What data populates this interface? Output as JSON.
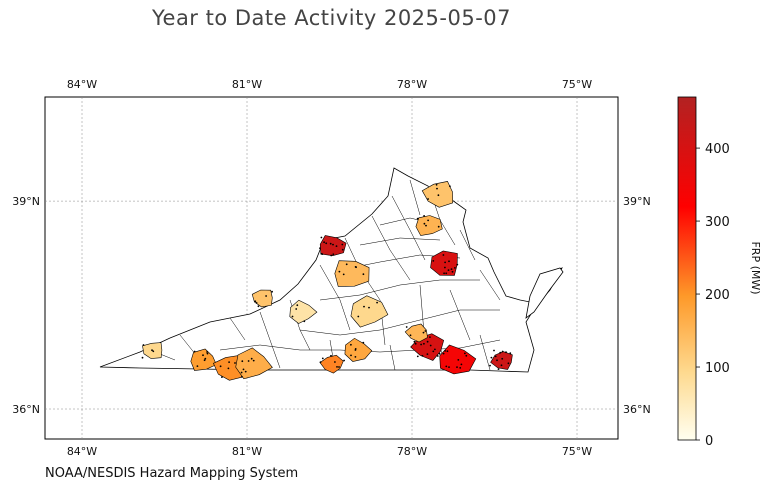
{
  "title": "Year to Date Activity 2025-05-07",
  "source": "NOAA/NESDIS Hazard Mapping System",
  "colors": {
    "state_outline": "#000000",
    "gridline": "#888888",
    "fire_point": "#000000"
  },
  "chart_data": {
    "type": "choropleth",
    "region": "Virginia counties",
    "x_ticks": [
      {
        "value": -84,
        "label": "84°W"
      },
      {
        "value": -81,
        "label": "81°W"
      },
      {
        "value": -78,
        "label": "78°W"
      },
      {
        "value": -75,
        "label": "75°W"
      }
    ],
    "y_ticks": [
      {
        "value": 39,
        "label": "39°N"
      },
      {
        "value": 36,
        "label": "36°N"
      }
    ],
    "colorbar": {
      "label": "FRP (MW)",
      "min": 0,
      "max": 470,
      "ticks": [
        0,
        100,
        200,
        300,
        400
      ],
      "colors": [
        "#fffff0",
        "#fed98e",
        "#fe9929",
        "#ff0000",
        "#b22222"
      ]
    },
    "counties": [
      {
        "lon": -82.7,
        "lat": 36.85,
        "frp": 95
      },
      {
        "lon": -81.8,
        "lat": 36.7,
        "frp": 190
      },
      {
        "lon": -81.3,
        "lat": 36.6,
        "frp": 205
      },
      {
        "lon": -80.9,
        "lat": 36.65,
        "frp": 165
      },
      {
        "lon": -79.45,
        "lat": 36.65,
        "frp": 215
      },
      {
        "lon": -79.0,
        "lat": 36.85,
        "frp": 175
      },
      {
        "lon": -77.7,
        "lat": 36.9,
        "frp": 400
      },
      {
        "lon": -77.2,
        "lat": 36.7,
        "frp": 340
      },
      {
        "lon": -76.35,
        "lat": 36.7,
        "frp": 420
      },
      {
        "lon": -79.45,
        "lat": 38.35,
        "frp": 420
      },
      {
        "lon": -77.4,
        "lat": 38.1,
        "frp": 395
      },
      {
        "lon": -79.1,
        "lat": 37.95,
        "frp": 145
      },
      {
        "lon": -80.7,
        "lat": 37.6,
        "frp": 130
      },
      {
        "lon": -77.7,
        "lat": 38.65,
        "frp": 155
      },
      {
        "lon": -77.5,
        "lat": 39.1,
        "frp": 130
      },
      {
        "lon": -78.8,
        "lat": 37.4,
        "frp": 95
      },
      {
        "lon": -77.9,
        "lat": 37.1,
        "frp": 150
      },
      {
        "lon": -80.0,
        "lat": 37.4,
        "frp": 70
      }
    ]
  }
}
